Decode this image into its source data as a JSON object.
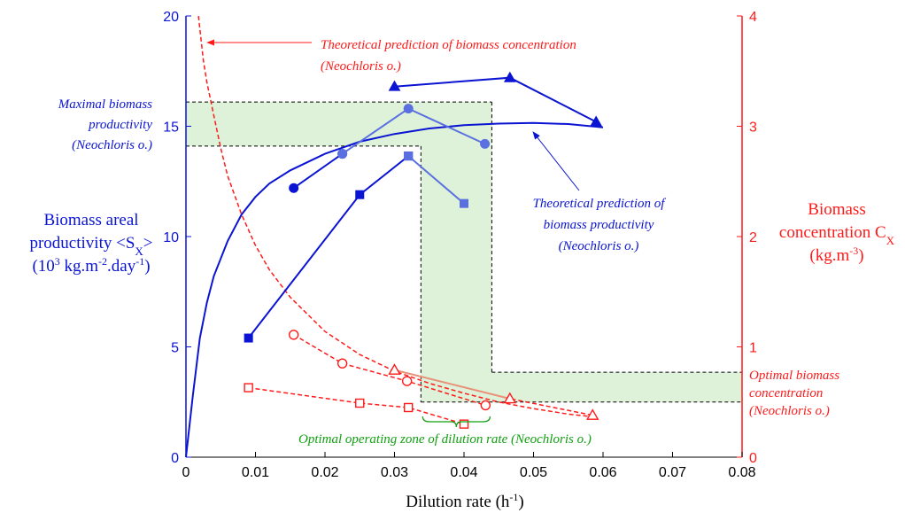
{
  "chart_data": {
    "type": "line",
    "xlabel": "Dilution rate (h",
    "xlabel_sup": "-1",
    "xlabel_end": ")",
    "xlim": [
      0,
      0.08
    ],
    "ylim_left": [
      0,
      20
    ],
    "ylim_right": [
      0,
      4
    ],
    "x_ticks": [
      "0",
      "0.01",
      "0.02",
      "0.03",
      "0.04",
      "0.05",
      "0.06",
      "0.07",
      "0.08"
    ],
    "y_left_ticks": [
      "0",
      "5",
      "10",
      "15",
      "20"
    ],
    "y_right_ticks": [
      "0",
      "1",
      "2",
      "3",
      "4"
    ],
    "ylabel_left": {
      "line1": "Biomass areal",
      "line2_a": "productivity <S",
      "line2_sub": "X",
      "line2_b": ">",
      "line3_a": "(10",
      "line3_sup1": "3",
      "line3_b": " kg.m",
      "line3_sup2": "-2",
      "line3_c": ".day",
      "line3_sup3": "-1",
      "line3_d": ")"
    },
    "ylabel_right": {
      "line1": "Biomass",
      "line2_a": "concentration C",
      "line2_sub": "X",
      "line3_a": "(kg.m",
      "line3_sup": "-3",
      "line3_b": ")"
    },
    "colors": {
      "blue": "#0a14d2",
      "light_blue": "#5a6fe0",
      "red": "#ff1a1a",
      "orange": "#e8927a",
      "green_fill": "#ddf2d8",
      "green_text": "#10a010"
    },
    "series": [
      {
        "axis": "left",
        "style": "solid",
        "color": "blue",
        "marker": "none",
        "x": [
          0,
          0.001,
          0.002,
          0.003,
          0.004,
          0.006,
          0.008,
          0.01,
          0.012,
          0.015,
          0.02,
          0.025,
          0.03,
          0.035,
          0.04,
          0.045,
          0.05,
          0.055,
          0.06
        ],
        "y": [
          0,
          2.8,
          5.4,
          7.0,
          8.2,
          9.8,
          11.0,
          11.8,
          12.4,
          13.0,
          13.75,
          14.3,
          14.65,
          14.9,
          15.05,
          15.12,
          15.15,
          15.1,
          14.95
        ]
      },
      {
        "axis": "right",
        "style": "dashed",
        "color": "red",
        "marker": "none",
        "x": [
          0.0018,
          0.0025,
          0.003,
          0.004,
          0.005,
          0.006,
          0.008,
          0.01,
          0.012,
          0.015,
          0.02,
          0.025,
          0.03,
          0.035,
          0.04,
          0.045,
          0.05,
          0.055,
          0.058
        ],
        "y": [
          4.0,
          3.6,
          3.4,
          3.1,
          2.8,
          2.55,
          2.2,
          1.92,
          1.7,
          1.45,
          1.14,
          0.93,
          0.78,
          0.67,
          0.58,
          0.5,
          0.44,
          0.39,
          0.37
        ]
      },
      {
        "axis": "left",
        "style": "solid",
        "color": "blue",
        "marker": "circle",
        "filled": true,
        "x": [
          0.0155,
          0.0225
        ],
        "y": [
          12.2,
          13.75
        ]
      },
      {
        "axis": "left",
        "style": "solid",
        "color": "light_blue",
        "marker": "circle",
        "filled": true,
        "x": [
          0.0225,
          0.032,
          0.043
        ],
        "y": [
          13.75,
          15.8,
          14.2
        ]
      },
      {
        "axis": "left",
        "style": "solid",
        "color": "blue",
        "marker": "square",
        "filled": true,
        "x": [
          0.009,
          0.025,
          0.032
        ],
        "y": [
          5.4,
          11.9,
          13.65
        ]
      },
      {
        "axis": "left",
        "style": "solid",
        "color": "light_blue",
        "marker": "square",
        "filled": true,
        "x": [
          0.032,
          0.04
        ],
        "y": [
          13.65,
          11.5
        ]
      },
      {
        "axis": "left",
        "style": "solid",
        "color": "blue",
        "marker": "triangle",
        "filled": true,
        "x": [
          0.03,
          0.0466,
          0.059
        ],
        "y": [
          16.8,
          17.2,
          15.2
        ]
      },
      {
        "axis": "right",
        "style": "dashed",
        "color": "red",
        "marker": "circle",
        "filled": false,
        "x": [
          0.0155,
          0.0225,
          0.0318,
          0.0431
        ],
        "y": [
          1.11,
          0.85,
          0.69,
          0.47
        ]
      },
      {
        "axis": "right",
        "style": "dashed",
        "color": "red",
        "marker": "square",
        "filled": false,
        "x": [
          0.009,
          0.025,
          0.032,
          0.04
        ],
        "y": [
          0.63,
          0.49,
          0.45,
          0.3
        ]
      },
      {
        "axis": "right",
        "style": "dashed",
        "color": "red",
        "marker": "triangle",
        "filled": false,
        "x": [
          0.03,
          0.0466,
          0.0585
        ],
        "y": [
          0.79,
          0.53,
          0.38
        ]
      },
      {
        "axis": "right",
        "style": "solid",
        "color": "orange",
        "marker": "none",
        "x": [
          0.03,
          0.0466
        ],
        "y": [
          0.79,
          0.53
        ]
      }
    ],
    "annotations": {
      "theo_conc_l1": "Theoretical prediction of biomass concentration",
      "theo_conc_l2": "(Neochloris o.)",
      "max_prod_l1": "Maximal biomass",
      "max_prod_l2": "productivity",
      "max_prod_l3": "(Neochloris o.)",
      "theo_prod_l1": "Theoretical prediction of",
      "theo_prod_l2": "biomass productivity",
      "theo_prod_l3": "(Neochloris o.)",
      "opt_conc_l1": "Optimal biomass",
      "opt_conc_l2": "concentration",
      "opt_conc_l3": "(Neochloris o.)",
      "opt_zone": "Optimal operating zone of dilution rate (Neochloris o.)"
    },
    "bands": {
      "max_productivity_left": [
        14.1,
        16.1
      ],
      "optimal_concentration_right": [
        0.5,
        0.77
      ],
      "optimal_dilution_x": [
        0.0338,
        0.044
      ]
    }
  }
}
